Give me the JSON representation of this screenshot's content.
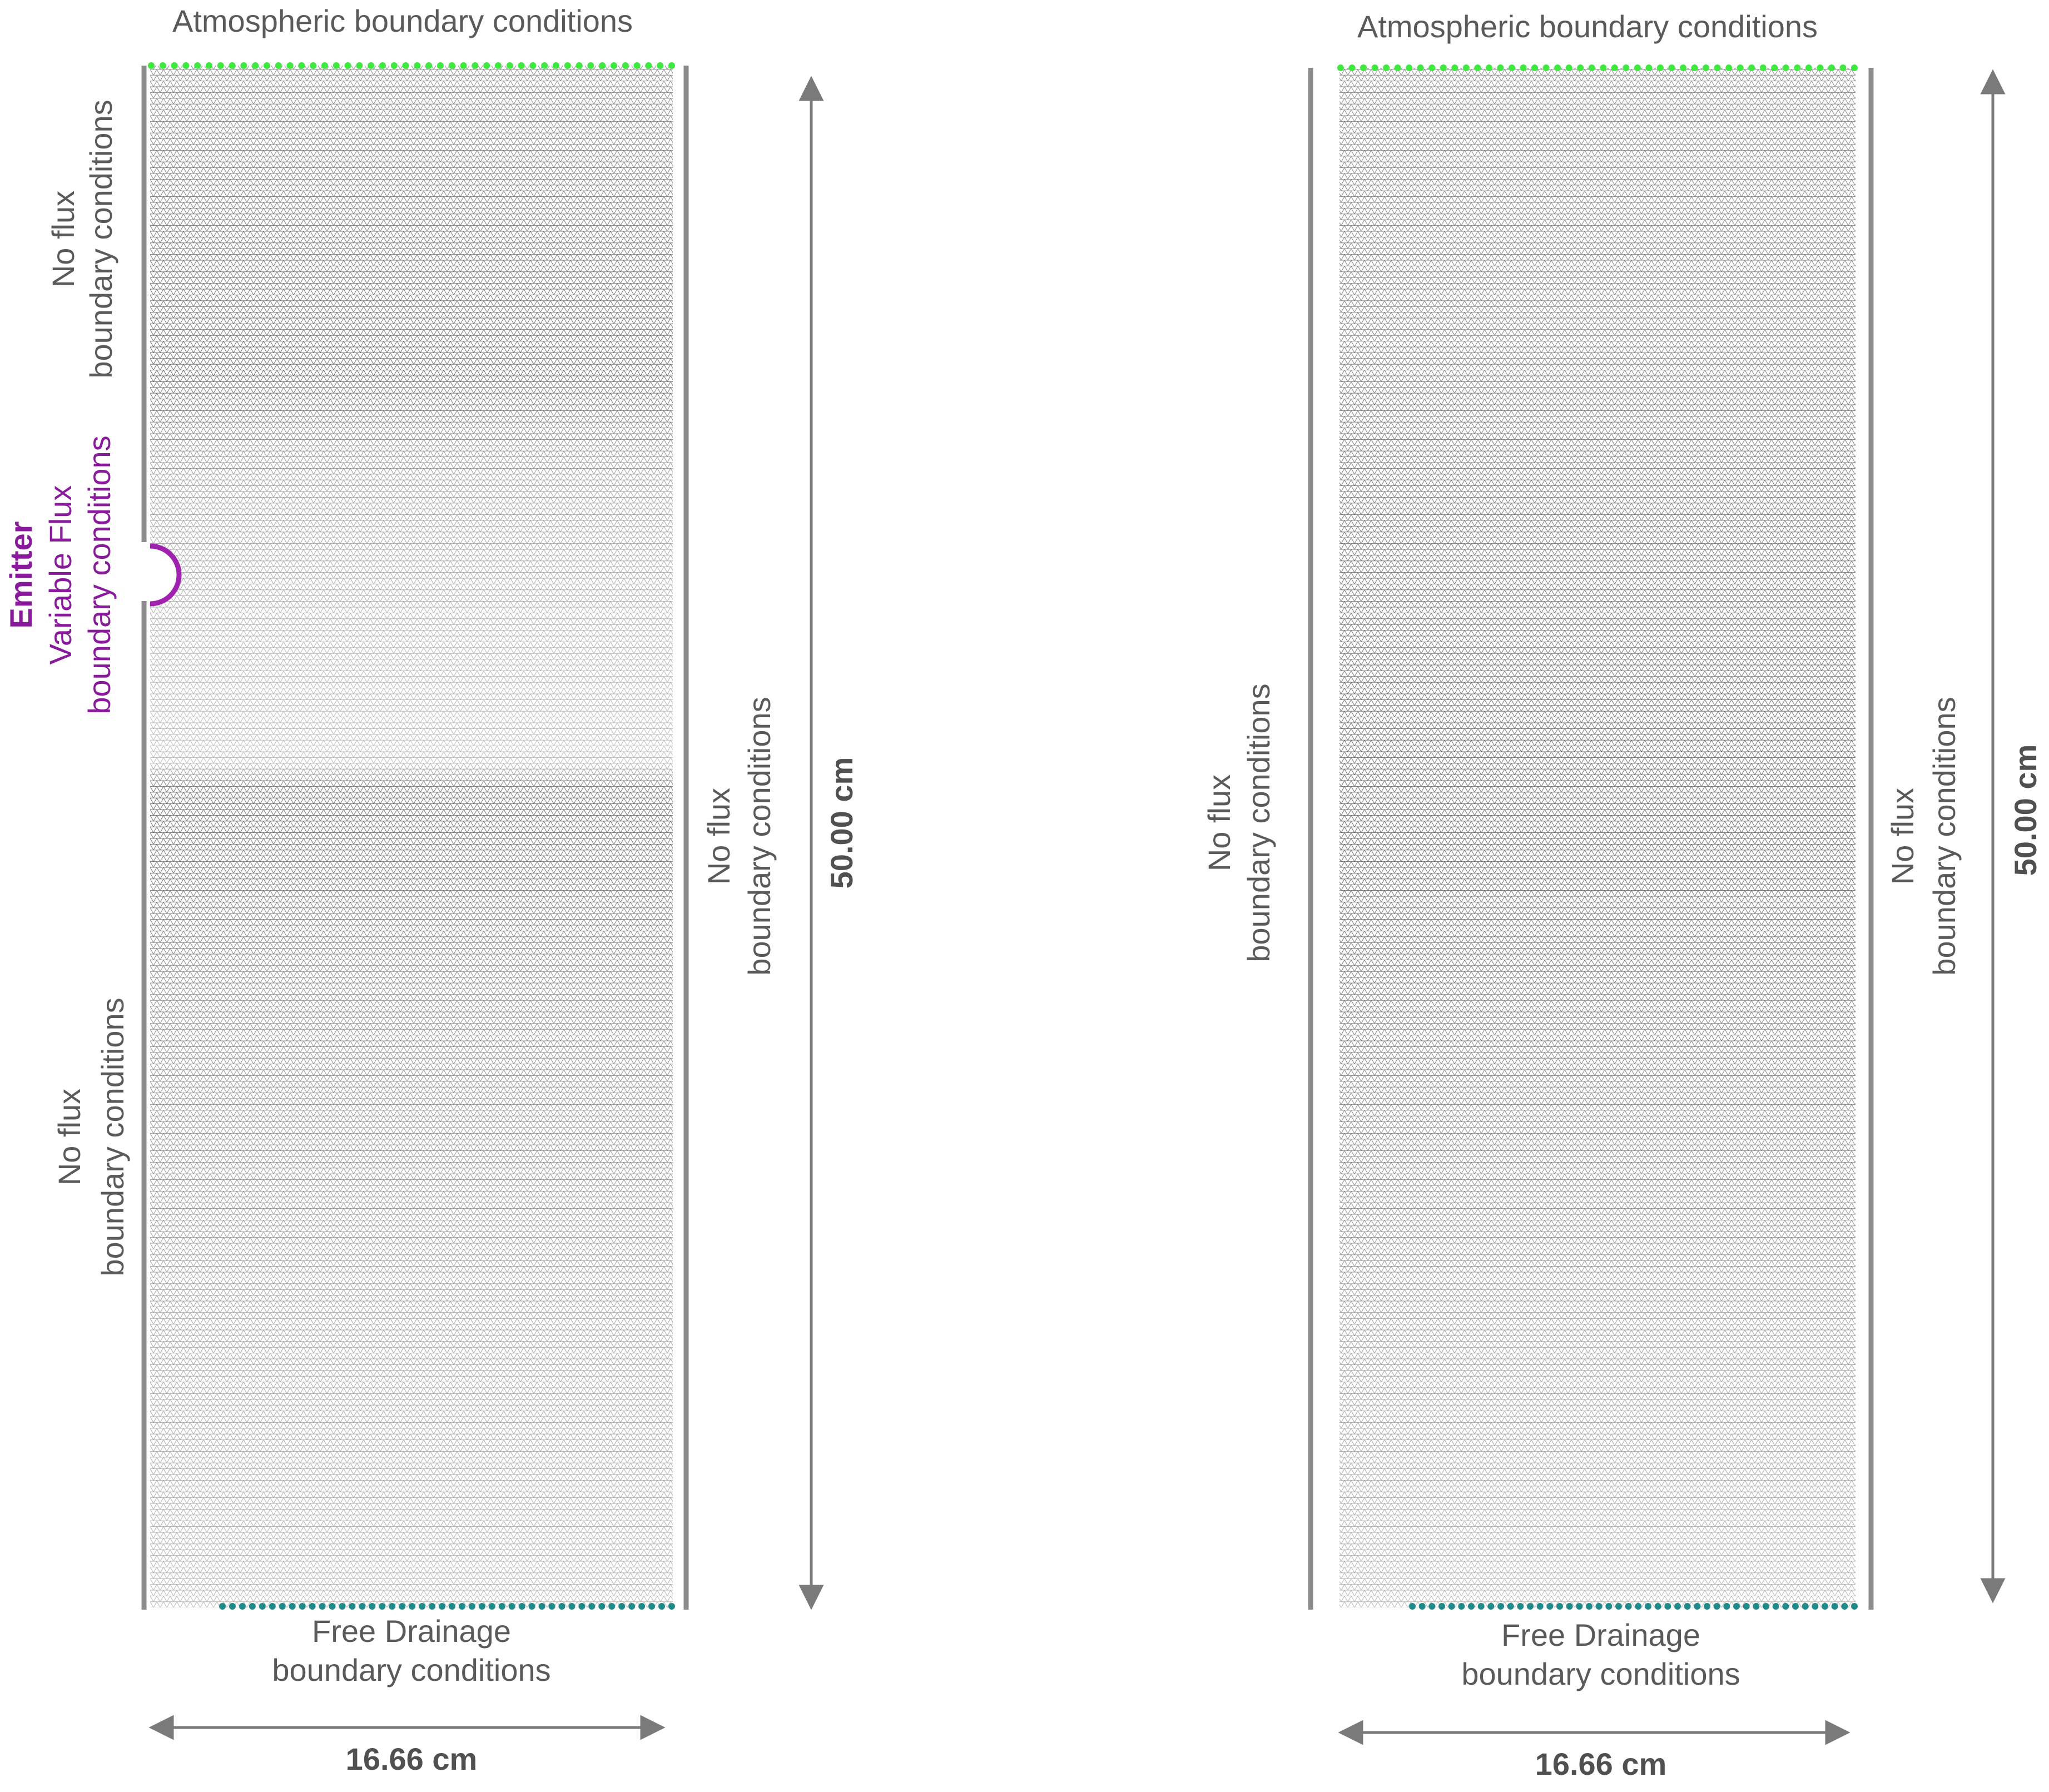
{
  "panels": [
    {
      "top_label": "Atmospheric boundary conditions",
      "left_upper_label": [
        "No flux",
        "boundary conditions"
      ],
      "emitter_label": [
        "Emitter",
        "Variable Flux",
        "boundary conditions"
      ],
      "left_lower_label": [
        "No flux",
        "boundary conditions"
      ],
      "right_label": [
        "No flux",
        "boundary conditions"
      ],
      "bottom_label": [
        "Free Drainage",
        "boundary conditions"
      ],
      "height_label": "50.00 cm",
      "width_label": "16.66 cm"
    },
    {
      "top_label": "Atmospheric boundary conditions",
      "left_label": [
        "No flux",
        "boundary conditions"
      ],
      "right_label": [
        "No flux",
        "boundary conditions"
      ],
      "bottom_label": [
        "Free Drainage",
        "boundary conditions"
      ],
      "height_label": "50.00 cm",
      "width_label": "16.66 cm"
    }
  ]
}
